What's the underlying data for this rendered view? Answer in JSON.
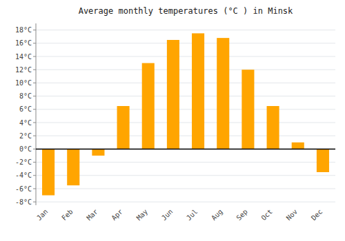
{
  "chart_data": {
    "type": "bar",
    "title": "Average monthly temperatures (°C ) in Minsk",
    "categories": [
      "Jan",
      "Feb",
      "Mar",
      "Apr",
      "May",
      "Jun",
      "Jul",
      "Aug",
      "Sep",
      "Oct",
      "Nov",
      "Dec"
    ],
    "values": [
      -7.0,
      -5.5,
      -1.0,
      6.5,
      13.0,
      16.5,
      17.5,
      16.8,
      12.0,
      6.5,
      1.0,
      -3.5
    ],
    "color": "#FFA500",
    "ylim": [
      -8.5,
      19
    ],
    "yticks": [
      {
        "value": -8,
        "label": "-8°C"
      },
      {
        "value": -6,
        "label": "-6°C"
      },
      {
        "value": -4,
        "label": "-4°C"
      },
      {
        "value": -2,
        "label": "-2°C"
      },
      {
        "value": 0,
        "label": "0°C"
      },
      {
        "value": 2,
        "label": "2°C"
      },
      {
        "value": 4,
        "label": "4°C"
      },
      {
        "value": 6,
        "label": "6°C"
      },
      {
        "value": 8,
        "label": "8°C"
      },
      {
        "value": 10,
        "label": "10°C"
      },
      {
        "value": 12,
        "label": "12°C"
      },
      {
        "value": 14,
        "label": "14°C"
      },
      {
        "value": 16,
        "label": "16°C"
      },
      {
        "value": 18,
        "label": "18°C"
      }
    ],
    "grid": true
  }
}
